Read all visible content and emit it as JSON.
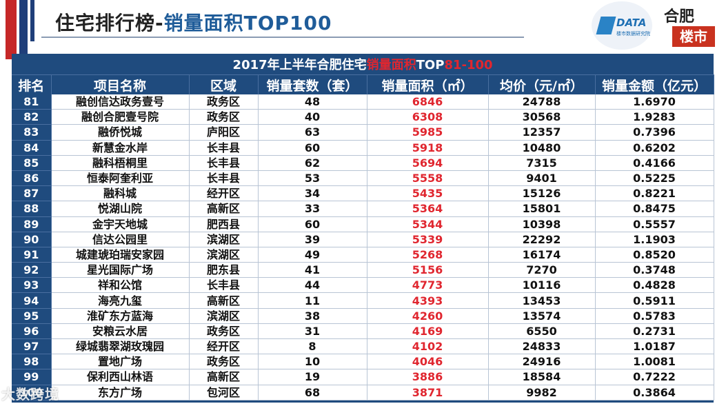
{
  "header": {
    "title_part1": "住宅排行榜-",
    "title_part2": "销量面积TOP100"
  },
  "logos": {
    "kdata_text": "DATA",
    "kdata_sub": "楼市数据研究院",
    "hefei_top": "合肥",
    "hefei_bottom": "楼市"
  },
  "table": {
    "caption_prefix": "2017年上半年合肥住宅",
    "caption_highlight": "销量面积",
    "caption_mid": "TOP",
    "caption_range": "81-100",
    "columns": [
      "排名",
      "项目名称",
      "区域",
      "销量套数（套）",
      "销量面积（㎡）",
      "均价（元/㎡）",
      "销量金额（亿元）"
    ],
    "rows": [
      [
        "81",
        "融创信达政务壹号",
        "政务区",
        "48",
        "6846",
        "24788",
        "1.6970"
      ],
      [
        "82",
        "融创合肥壹号院",
        "政务区",
        "40",
        "6308",
        "30568",
        "1.9283"
      ],
      [
        "83",
        "融侨悦城",
        "庐阳区",
        "63",
        "5985",
        "12357",
        "0.7396"
      ],
      [
        "84",
        "新慧金水岸",
        "长丰县",
        "60",
        "5918",
        "10480",
        "0.6202"
      ],
      [
        "85",
        "融科梧桐里",
        "长丰县",
        "62",
        "5694",
        "7315",
        "0.4166"
      ],
      [
        "86",
        "恒泰阿奎利亚",
        "长丰县",
        "53",
        "5558",
        "9401",
        "0.5225"
      ],
      [
        "87",
        "融科城",
        "经开区",
        "34",
        "5435",
        "15126",
        "0.8221"
      ],
      [
        "88",
        "悦湖山院",
        "高新区",
        "33",
        "5364",
        "15801",
        "0.8475"
      ],
      [
        "89",
        "金宇天地城",
        "肥西县",
        "60",
        "5344",
        "10398",
        "0.5557"
      ],
      [
        "90",
        "信达公园里",
        "滨湖区",
        "39",
        "5339",
        "22292",
        "1.1903"
      ],
      [
        "91",
        "城建琥珀瑞安家园",
        "滨湖区",
        "49",
        "5268",
        "16174",
        "0.8520"
      ],
      [
        "92",
        "星光国际广场",
        "肥东县",
        "41",
        "5156",
        "7270",
        "0.3748"
      ],
      [
        "93",
        "祥和公馆",
        "长丰县",
        "44",
        "4773",
        "10116",
        "0.4828"
      ],
      [
        "94",
        "海亮九玺",
        "高新区",
        "11",
        "4393",
        "13453",
        "0.5911"
      ],
      [
        "95",
        "淮矿东方蓝海",
        "滨湖区",
        "38",
        "4260",
        "13574",
        "0.5783"
      ],
      [
        "96",
        "安粮云水居",
        "政务区",
        "31",
        "4169",
        "6550",
        "0.2731"
      ],
      [
        "97",
        "绿城翡翠湖玫瑰园",
        "经开区",
        "8",
        "4102",
        "24833",
        "1.0187"
      ],
      [
        "98",
        "置地广场",
        "政务区",
        "10",
        "4046",
        "24916",
        "1.0081"
      ],
      [
        "99",
        "保利西山林语",
        "高新区",
        "19",
        "3886",
        "18584",
        "0.7222"
      ],
      [
        "100",
        "东方广场",
        "包河区",
        "68",
        "3871",
        "9982",
        "0.3864"
      ]
    ]
  },
  "watermark": "大数跨境",
  "colors": {
    "header_blue": "#1f4b7e",
    "area_red": "#e0262f",
    "title_blue": "#1f5c99",
    "flag_red": "#c62828"
  }
}
